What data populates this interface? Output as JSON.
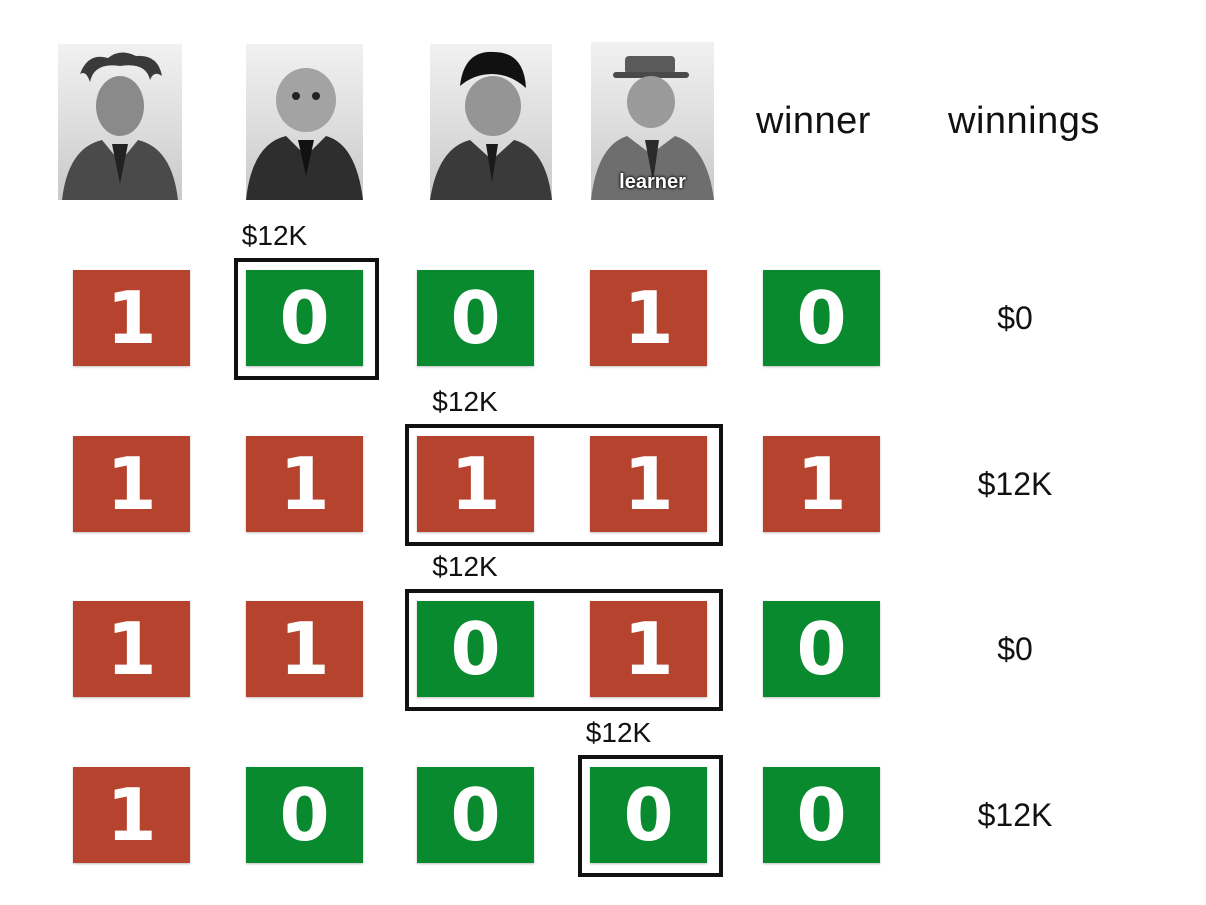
{
  "header": {
    "portraits": [
      {
        "name": "portrait-1",
        "label": ""
      },
      {
        "name": "portrait-2",
        "label": ""
      },
      {
        "name": "portrait-3",
        "label": ""
      },
      {
        "name": "portrait-learner",
        "label": "learner"
      }
    ],
    "winner_label": "winner",
    "winnings_label": "winnings"
  },
  "colors": {
    "one": "#b5432d",
    "zero": "#0a8a2e"
  },
  "rows": [
    {
      "cells": [
        "1",
        "0",
        "0",
        "1",
        "0"
      ],
      "winnings": "$0",
      "bet": {
        "columns": [
          1
        ],
        "amount": "$12K"
      }
    },
    {
      "cells": [
        "1",
        "1",
        "1",
        "1",
        "1"
      ],
      "winnings": "$12K",
      "bet": {
        "columns": [
          2,
          3
        ],
        "amount": "$12K"
      }
    },
    {
      "cells": [
        "1",
        "1",
        "0",
        "1",
        "0"
      ],
      "winnings": "$0",
      "bet": {
        "columns": [
          2,
          3
        ],
        "amount": "$12K"
      }
    },
    {
      "cells": [
        "1",
        "0",
        "0",
        "0",
        "0"
      ],
      "winnings": "$12K",
      "bet": {
        "columns": [
          3
        ],
        "amount": "$12K"
      }
    }
  ]
}
